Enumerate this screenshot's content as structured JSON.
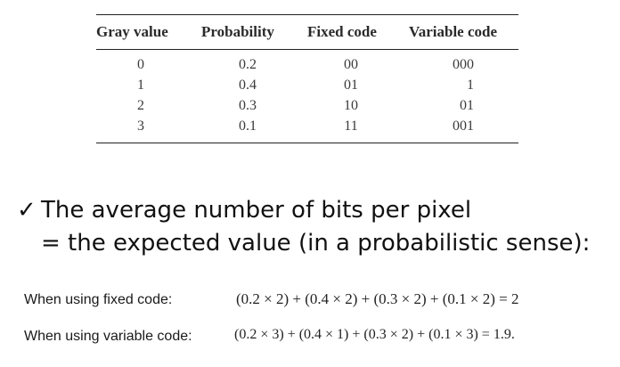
{
  "table": {
    "headers": [
      "Gray value",
      "Probability",
      "Fixed code",
      "Variable code"
    ],
    "rows": [
      [
        "0",
        "0.2",
        "00",
        "000"
      ],
      [
        "1",
        "0.4",
        "01",
        "1"
      ],
      [
        "2",
        "0.3",
        "10",
        "01"
      ],
      [
        "3",
        "0.1",
        "11",
        "001"
      ]
    ]
  },
  "bullet": {
    "check": "✓",
    "line1": "The average number of bits per pixel",
    "line2": "= the expected value (in a probabilistic sense):"
  },
  "calculations": {
    "fixed": {
      "label": "When using fixed code:",
      "expression": "(0.2 × 2) + (0.4 × 2) + (0.3 × 2) + (0.1 × 2) = 2"
    },
    "variable": {
      "label": "When using variable code:",
      "expression": "(0.2 × 3) + (0.4 × 1) + (0.3 × 2) + (0.1 × 3) = 1.9."
    }
  }
}
